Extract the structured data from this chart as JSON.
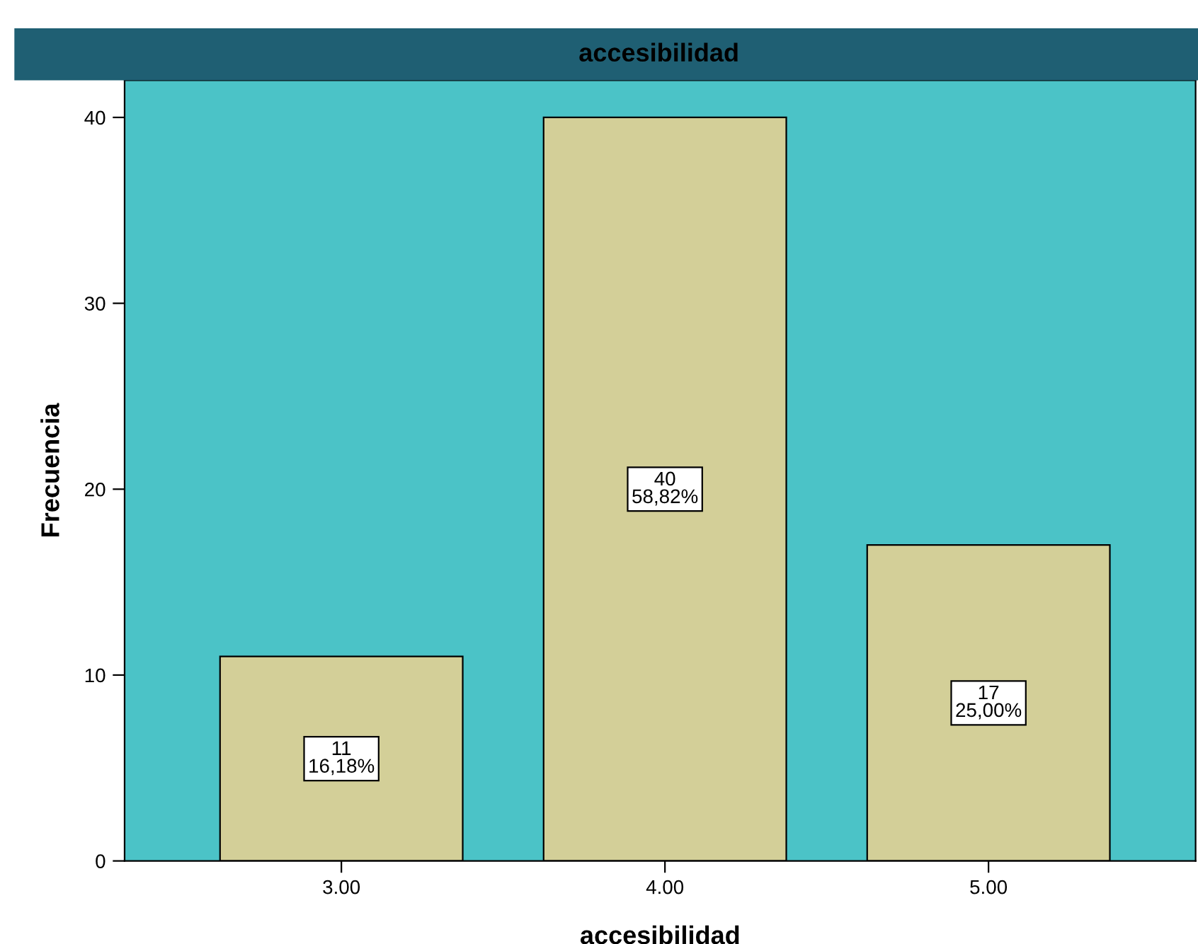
{
  "chart_data": {
    "type": "bar",
    "title": "accesibilidad",
    "xlabel": "accesibilidad",
    "ylabel": "Frecuencia",
    "categories": [
      "3.00",
      "4.00",
      "5.00"
    ],
    "values": [
      11,
      40,
      17
    ],
    "value_labels": [
      "11\n16,18%",
      "40\n58,82%",
      "17\n25,00%"
    ],
    "color": "#d3cf98",
    "ylim": [
      0,
      42
    ],
    "yticks": [
      0,
      10,
      20,
      30,
      40
    ],
    "grid": false,
    "legend": false
  }
}
